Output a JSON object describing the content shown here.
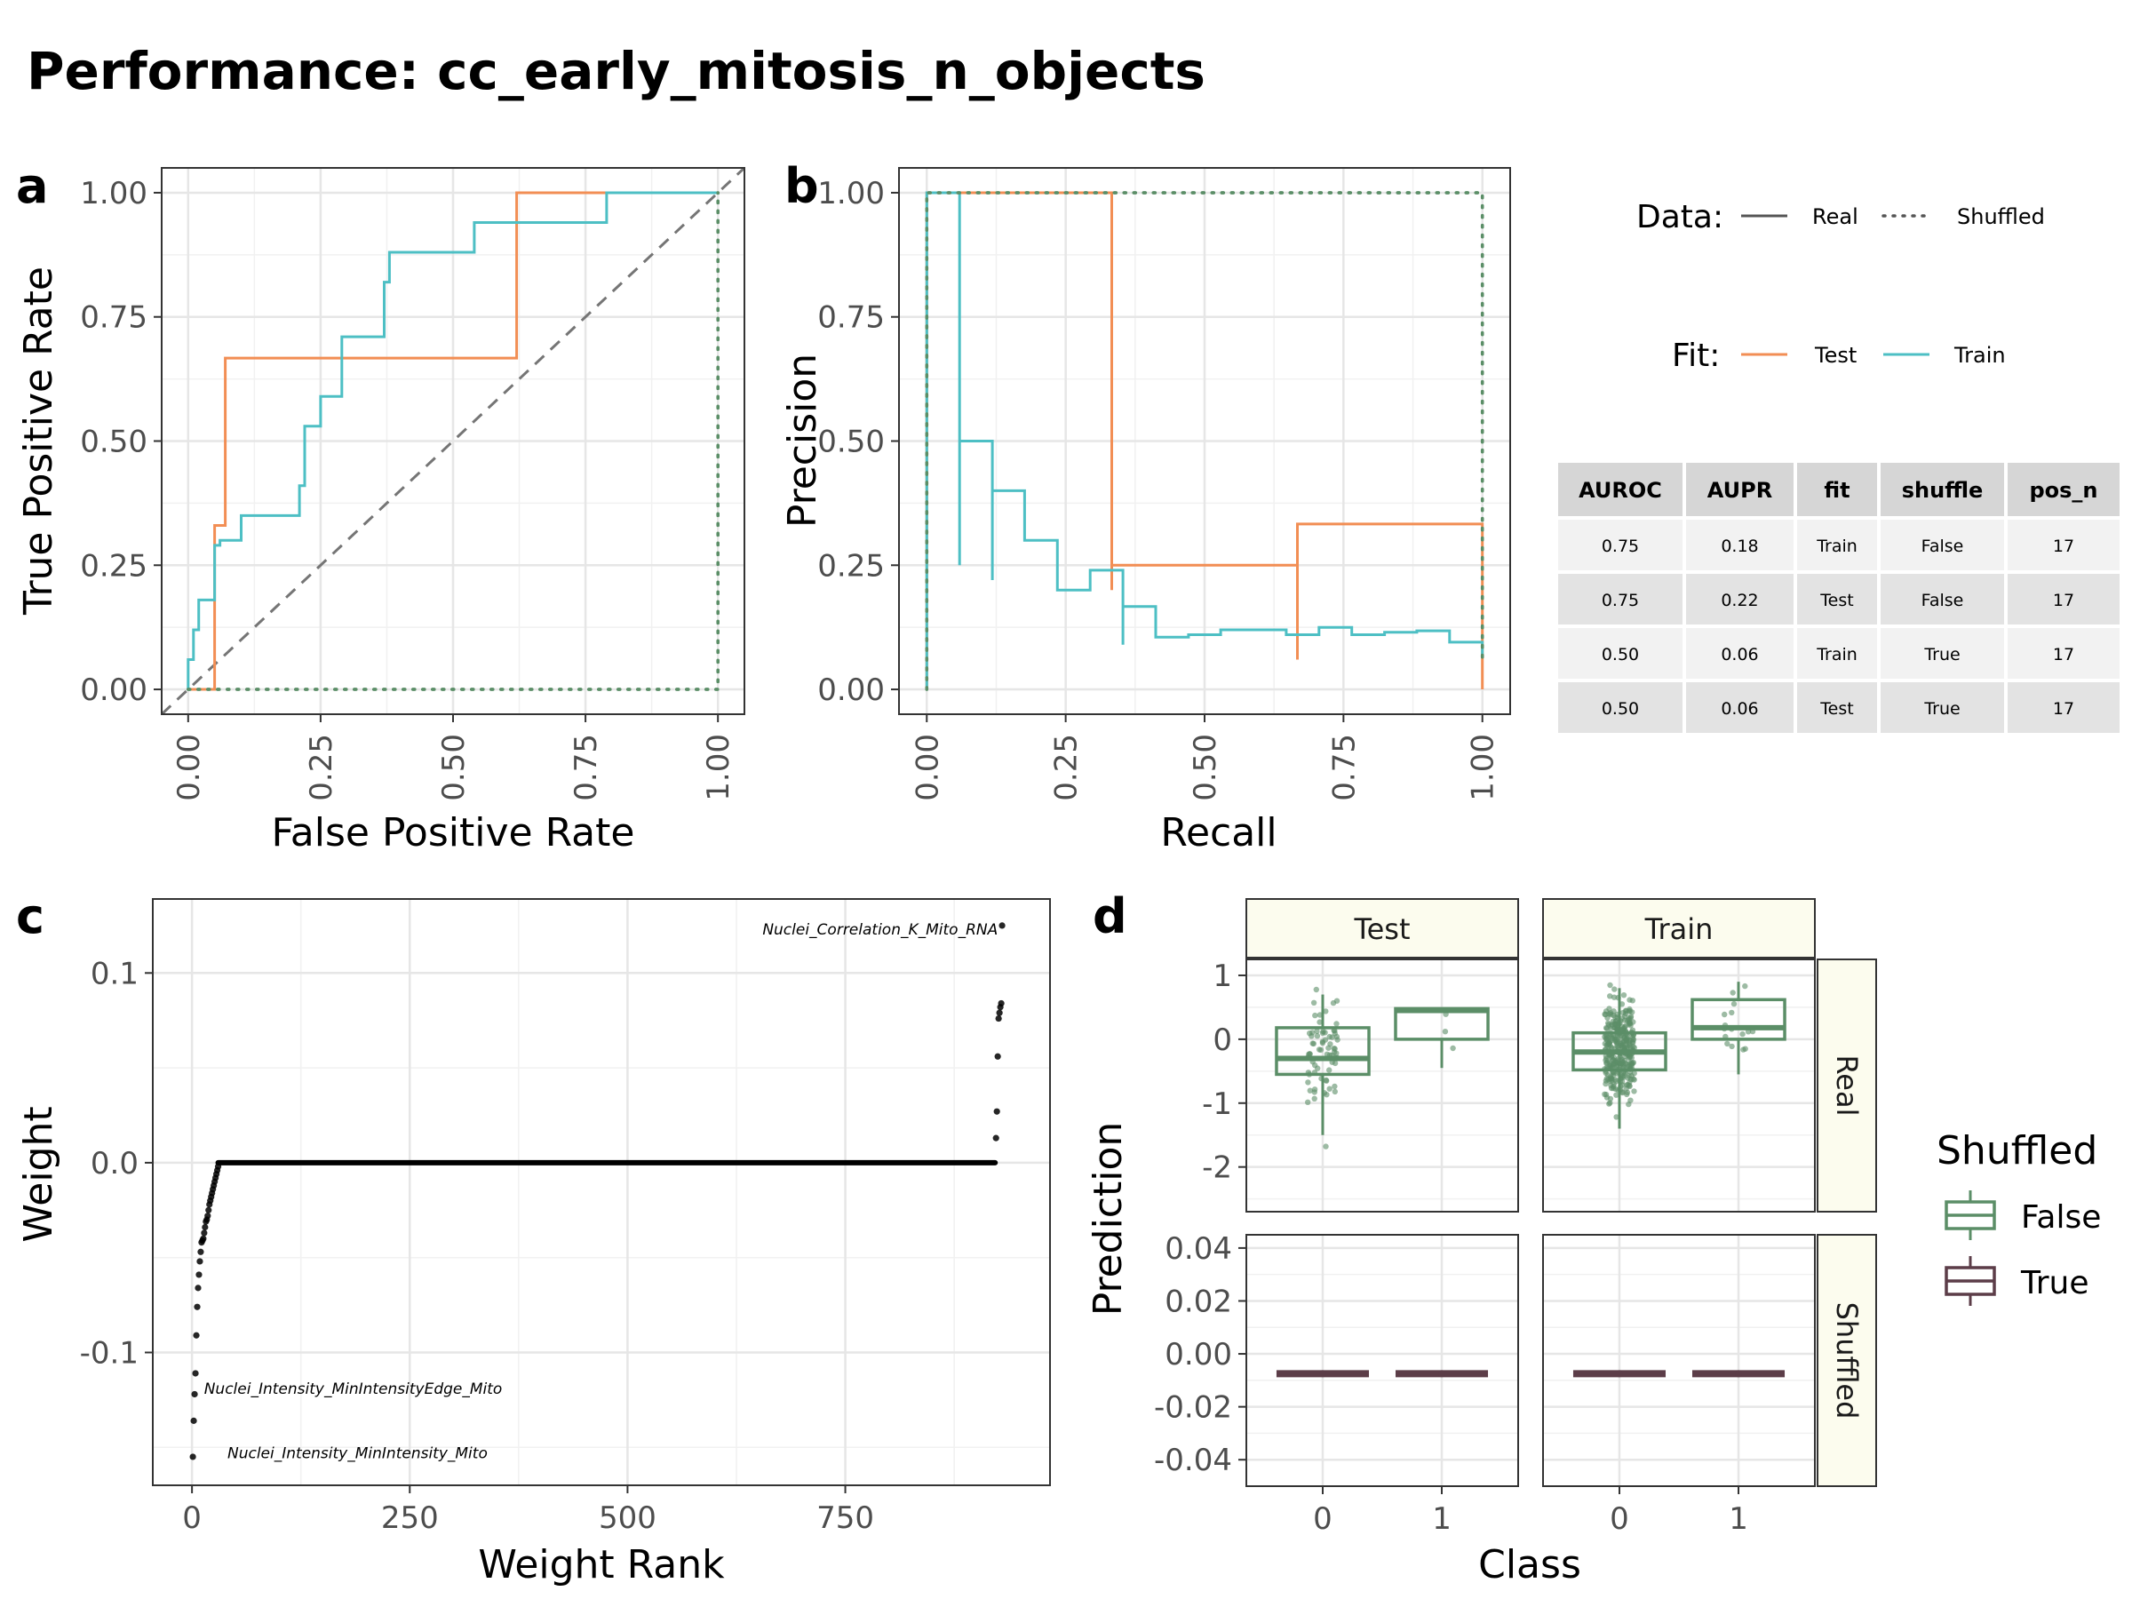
{
  "title": "Performance: cc_early_mitosis_n_objects",
  "colors": {
    "test": "#F28E54",
    "train": "#4DBFC4",
    "shuf_false": "#5B8E67",
    "shuf_true": "#5C3D48",
    "diag": "#757575",
    "strip_bg": "#FCFCEE"
  },
  "panel_tags": {
    "a": "a",
    "b": "b",
    "c": "c",
    "d": "d"
  },
  "legend": {
    "data_title": "Data:",
    "data_real": "Real",
    "data_shuffled": "Shuffled",
    "fit_title": "Fit:",
    "fit_test": "Test",
    "fit_train": "Train",
    "shuffled_title": "Shuffled",
    "shuffled_false": "False",
    "shuffled_true": "True"
  },
  "table": {
    "headers": [
      "AUROC",
      "AUPR",
      "fit",
      "shuffle",
      "pos_n"
    ],
    "rows": [
      [
        "0.75",
        "0.18",
        "Train",
        "False",
        "17"
      ],
      [
        "0.75",
        "0.22",
        "Test",
        "False",
        "17"
      ],
      [
        "0.50",
        "0.06",
        "Train",
        "True",
        "17"
      ],
      [
        "0.50",
        "0.06",
        "Test",
        "True",
        "17"
      ]
    ]
  },
  "chart_data": [
    {
      "panel": "a",
      "type": "line",
      "xlabel": "False Positive Rate",
      "ylabel": "True Positive Rate",
      "xlim": [
        -0.05,
        1.05
      ],
      "ylim": [
        -0.05,
        1.05
      ],
      "xticks": [
        "0.00",
        "0.25",
        "0.50",
        "0.75",
        "1.00"
      ],
      "yticks": [
        "0.00",
        "0.25",
        "0.50",
        "0.75",
        "1.00"
      ],
      "series": [
        {
          "name": "Test",
          "linetype": "Real",
          "x": [
            0,
            0.05,
            0.05,
            0.07,
            0.07,
            0.62,
            0.62,
            1.0
          ],
          "y": [
            0,
            0,
            0.33,
            0.33,
            0.667,
            0.667,
            1.0,
            1.0
          ]
        },
        {
          "name": "Train",
          "linetype": "Real",
          "x": [
            0,
            0,
            0.01,
            0.01,
            0.02,
            0.02,
            0.05,
            0.05,
            0.06,
            0.06,
            0.1,
            0.1,
            0.21,
            0.21,
            0.22,
            0.22,
            0.25,
            0.25,
            0.29,
            0.29,
            0.29,
            0.29,
            0.37,
            0.37,
            0.38,
            0.38,
            0.54,
            0.54,
            0.69,
            0.69,
            0.79,
            0.79,
            1.0
          ],
          "y": [
            0,
            0.06,
            0.06,
            0.12,
            0.12,
            0.18,
            0.18,
            0.29,
            0.29,
            0.3,
            0.3,
            0.35,
            0.35,
            0.41,
            0.41,
            0.53,
            0.53,
            0.59,
            0.59,
            0.65,
            0.65,
            0.71,
            0.71,
            0.82,
            0.82,
            0.88,
            0.88,
            0.94,
            0.94,
            0.94,
            0.94,
            1.0,
            1.0
          ]
        },
        {
          "name": "Test",
          "linetype": "Shuffled",
          "x": [
            0,
            1.0,
            1.0
          ],
          "y": [
            0,
            0,
            1.0
          ]
        },
        {
          "name": "Train",
          "linetype": "Shuffled",
          "x": [
            0,
            1.0,
            1.0
          ],
          "y": [
            0,
            0,
            1.0
          ]
        }
      ]
    },
    {
      "panel": "b",
      "type": "line",
      "xlabel": "Recall",
      "ylabel": "Precision",
      "xlim": [
        -0.05,
        1.05
      ],
      "ylim": [
        -0.05,
        1.05
      ],
      "xticks": [
        "0.00",
        "0.25",
        "0.50",
        "0.75",
        "1.00"
      ],
      "yticks": [
        "0.00",
        "0.25",
        "0.50",
        "0.75",
        "1.00"
      ],
      "series": [
        {
          "name": "Test",
          "linetype": "Real",
          "x": [
            0,
            0,
            0.333,
            0.333,
            0.333,
            0.667,
            0.667,
            0.667,
            1.0,
            1.0
          ],
          "y": [
            0,
            1.0,
            1.0,
            0.2,
            0.25,
            0.25,
            0.06,
            0.333,
            0.333,
            0.0
          ]
        },
        {
          "name": "Train",
          "linetype": "Real",
          "x": [
            0,
            0,
            0.059,
            0.059,
            0.059,
            0.118,
            0.118,
            0.118,
            0.176,
            0.176,
            0.235,
            0.235,
            0.294,
            0.294,
            0.353,
            0.353,
            0.353,
            0.412,
            0.412,
            0.471,
            0.471,
            0.529,
            0.529,
            0.588,
            0.588,
            0.647,
            0.647,
            0.706,
            0.706,
            0.765,
            0.765,
            0.824,
            0.824,
            0.882,
            0.882,
            0.941,
            0.941,
            1.0,
            1.0
          ],
          "y": [
            0,
            1.0,
            1.0,
            0.25,
            0.5,
            0.5,
            0.22,
            0.4,
            0.4,
            0.3,
            0.3,
            0.2,
            0.2,
            0.24,
            0.24,
            0.09,
            0.167,
            0.167,
            0.105,
            0.105,
            0.11,
            0.11,
            0.12,
            0.12,
            0.12,
            0.12,
            0.11,
            0.11,
            0.125,
            0.125,
            0.11,
            0.11,
            0.115,
            0.115,
            0.118,
            0.118,
            0.095,
            0.095,
            0.07
          ]
        },
        {
          "name": "Test",
          "linetype": "Shuffled",
          "x": [
            0,
            0,
            1.0,
            1.0
          ],
          "y": [
            0,
            1.0,
            1.0,
            0.06
          ]
        },
        {
          "name": "Train",
          "linetype": "Shuffled",
          "x": [
            0,
            0,
            1.0,
            1.0
          ],
          "y": [
            0,
            1.0,
            1.0,
            0.06
          ]
        }
      ]
    },
    {
      "panel": "c",
      "type": "scatter",
      "xlabel": "Weight Rank",
      "ylabel": "Weight",
      "xlim": [
        -45,
        985
      ],
      "ylim": [
        -0.17,
        0.139
      ],
      "xticks": [
        "0",
        "250",
        "500",
        "750"
      ],
      "yticks": [
        "0.1",
        "0.0",
        "-0.1"
      ],
      "points": {
        "x": [
          1,
          2,
          3,
          4,
          5,
          6,
          7,
          8,
          9,
          10,
          11,
          12,
          13,
          14,
          15,
          16,
          17,
          18,
          19,
          20,
          21,
          22,
          23,
          24,
          25,
          26,
          27,
          28,
          29,
          30,
          923,
          924,
          925,
          926,
          927,
          928,
          929,
          930
        ],
        "y": [
          -0.155,
          -0.136,
          -0.122,
          -0.111,
          -0.091,
          -0.076,
          -0.066,
          -0.059,
          -0.052,
          -0.047,
          -0.042,
          -0.041,
          -0.04,
          -0.037,
          -0.034,
          -0.031,
          -0.03,
          -0.028,
          -0.025,
          -0.022,
          -0.02,
          -0.018,
          -0.016,
          -0.014,
          -0.012,
          -0.01,
          -0.008,
          -0.006,
          -0.004,
          -0.002,
          0.013,
          0.027,
          0.056,
          0.076,
          0.079,
          0.082,
          0.084,
          0.125
        ]
      },
      "zero_range": [
        30,
        922
      ],
      "annotations": [
        {
          "text": "Nuclei_Correlation_K_Mito_RNA",
          "x": 790,
          "y": 0.123
        },
        {
          "text": "Nuclei_Intensity_MinIntensityEdge_Mito",
          "x": 185,
          "y": -0.119
        },
        {
          "text": "Nuclei_Intensity_MinIntensity_Mito",
          "x": 190,
          "y": -0.153
        }
      ]
    },
    {
      "panel": "d",
      "type": "box",
      "xlabel": "Class",
      "ylabel": "Prediction",
      "facet_cols": [
        "Test",
        "Train"
      ],
      "facet_rows": [
        "Real",
        "Shuffled"
      ],
      "xticks": [
        "0",
        "1"
      ],
      "real_ylim": [
        -2.7,
        1.25
      ],
      "real_yticks": [
        "1",
        "0",
        "-1",
        "-2"
      ],
      "shuffled_ylim": [
        -0.05,
        0.045
      ],
      "shuffled_yticks": [
        "0.04",
        "0.02",
        "0.00",
        "-0.02",
        "-0.04"
      ],
      "boxes": [
        {
          "facet": "Test",
          "row": "Real",
          "class": "0",
          "q1": -0.55,
          "median": -0.3,
          "q3": 0.18,
          "whisker_low": -1.5,
          "whisker_high": 0.7
        },
        {
          "facet": "Test",
          "row": "Real",
          "class": "1",
          "q1": 0.0,
          "median": 0.45,
          "q3": 0.48,
          "whisker_low": -0.45,
          "whisker_high": 0.5
        },
        {
          "facet": "Train",
          "row": "Real",
          "class": "0",
          "q1": -0.48,
          "median": -0.2,
          "q3": 0.1,
          "whisker_low": -1.4,
          "whisker_high": 0.8
        },
        {
          "facet": "Train",
          "row": "Real",
          "class": "1",
          "q1": 0.0,
          "median": 0.18,
          "q3": 0.62,
          "whisker_low": -0.55,
          "whisker_high": 0.9
        },
        {
          "facet": "Test",
          "row": "Shuffled",
          "class": "0",
          "q1": -0.0075,
          "median": -0.0075,
          "q3": -0.0075,
          "whisker_low": -0.0075,
          "whisker_high": -0.0075
        },
        {
          "facet": "Test",
          "row": "Shuffled",
          "class": "1",
          "q1": -0.0075,
          "median": -0.0075,
          "q3": -0.0075,
          "whisker_low": -0.0075,
          "whisker_high": -0.0075
        },
        {
          "facet": "Train",
          "row": "Shuffled",
          "class": "0",
          "q1": -0.0075,
          "median": -0.0075,
          "q3": -0.0075,
          "whisker_low": -0.0075,
          "whisker_high": -0.0075
        },
        {
          "facet": "Train",
          "row": "Shuffled",
          "class": "1",
          "q1": -0.0075,
          "median": -0.0075,
          "q3": -0.0075,
          "whisker_low": -0.0075,
          "whisker_high": -0.0075
        }
      ]
    }
  ]
}
